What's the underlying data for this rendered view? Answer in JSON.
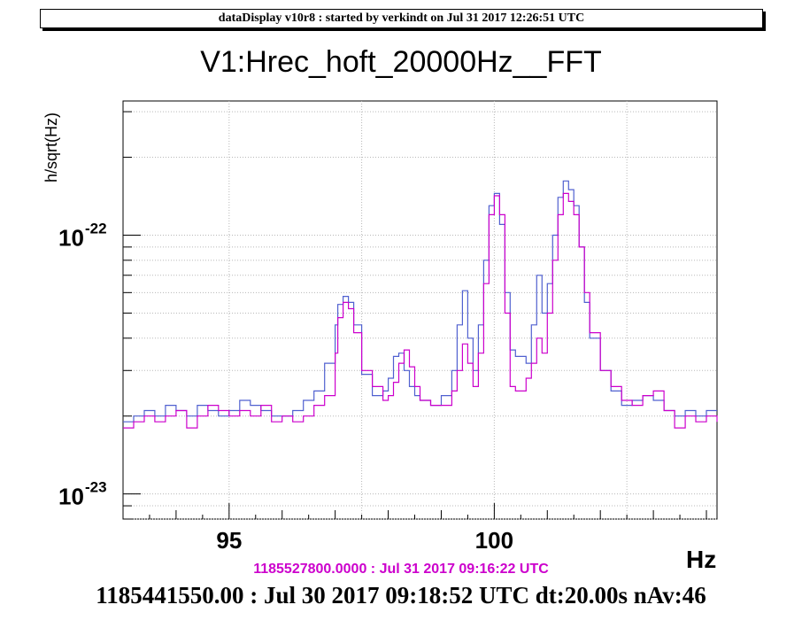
{
  "banner": "dataDisplay v10r8 : started by verkindt on Jul 31 2017 12:26:51 UTC",
  "footer": {
    "reference": "1185527800.0000 : Jul 31 2017 09:16:22 UTC",
    "main": "1185441550.00 : Jul 30 2017 09:18:52 UTC dt:20.00s nAv:46"
  },
  "colors": {
    "reference": "#cc00cc",
    "current": "#5060d0"
  },
  "chart_data": {
    "type": "line",
    "title": "V1:Hrec_hoft_20000Hz__FFT",
    "ylabel": "h/sqrt(Hz)",
    "xlabel": "Hz",
    "xlim": [
      93,
      104.2
    ],
    "ylim": [
      8e-24,
      3.3e-22
    ],
    "yscale": "log",
    "grid": true,
    "x_ticks": [
      95,
      100
    ],
    "y_ticks": [
      {
        "base": "10",
        "exp": "-22",
        "value": 1e-22
      },
      {
        "base": "10",
        "exp": "-23",
        "value": 1e-23
      }
    ],
    "x": [
      93.0,
      93.2,
      93.4,
      93.6,
      93.8,
      94.0,
      94.2,
      94.4,
      94.6,
      94.8,
      95.0,
      95.2,
      95.4,
      95.6,
      95.8,
      96.0,
      96.2,
      96.4,
      96.6,
      96.8,
      97.0,
      97.05,
      97.15,
      97.25,
      97.35,
      97.5,
      97.7,
      97.9,
      98.0,
      98.1,
      98.2,
      98.3,
      98.4,
      98.5,
      98.6,
      98.8,
      99.0,
      99.2,
      99.3,
      99.4,
      99.5,
      99.6,
      99.7,
      99.8,
      99.9,
      100.0,
      100.1,
      100.2,
      100.3,
      100.4,
      100.6,
      100.7,
      100.8,
      100.9,
      101.0,
      101.1,
      101.2,
      101.3,
      101.4,
      101.5,
      101.6,
      101.7,
      101.8,
      102.0,
      102.2,
      102.4,
      102.6,
      102.8,
      103.0,
      103.2,
      103.4,
      103.6,
      103.8,
      104.0,
      104.2
    ],
    "series": [
      {
        "name": "",
        "values": [
          1.9e-23,
          2e-23,
          2.1e-23,
          2e-23,
          2.2e-23,
          2.1e-23,
          2e-23,
          2.2e-23,
          2.1e-23,
          2e-23,
          2.1e-23,
          2.3e-23,
          2.2e-23,
          2.1e-23,
          2e-23,
          2e-23,
          2.1e-23,
          2.3e-23,
          2.5e-23,
          3.2e-23,
          4.5e-23,
          5.4e-23,
          5.8e-23,
          5.5e-23,
          4.5e-23,
          2.9e-23,
          2.4e-23,
          2.5e-23,
          2.8e-23,
          3.4e-23,
          3.5e-23,
          3e-23,
          2.6e-23,
          2.4e-23,
          2.3e-23,
          2.2e-23,
          2.4e-23,
          3e-23,
          4.5e-23,
          6.1e-23,
          4e-23,
          3e-23,
          4.5e-23,
          8e-23,
          1.3e-22,
          1.45e-22,
          1.1e-22,
          6e-23,
          3.6e-23,
          3.4e-23,
          3.2e-23,
          4.5e-23,
          7e-23,
          5e-23,
          6.5e-23,
          1e-22,
          1.4e-22,
          1.62e-22,
          1.5e-22,
          1.3e-22,
          9e-23,
          5.5e-23,
          4e-23,
          3e-23,
          2.5e-23,
          2.2e-23,
          2.3e-23,
          2.4e-23,
          2.3e-23,
          2.1e-23,
          2e-23,
          2.1e-23,
          2e-23,
          2.1e-23,
          2.1e-23
        ]
      },
      {
        "name": "",
        "values": [
          1.8e-23,
          1.9e-23,
          2e-23,
          1.9e-23,
          2e-23,
          2.1e-23,
          1.8e-23,
          2e-23,
          2.2e-23,
          2.1e-23,
          2e-23,
          2.1e-23,
          2e-23,
          2.2e-23,
          1.9e-23,
          2e-23,
          1.9e-23,
          2e-23,
          2.2e-23,
          2.4e-23,
          3.5e-23,
          4.8e-23,
          5.5e-23,
          5.2e-23,
          4.2e-23,
          3e-23,
          2.6e-23,
          2.3e-23,
          2.4e-23,
          2.7e-23,
          3.2e-23,
          3.6e-23,
          3.1e-23,
          2.6e-23,
          2.3e-23,
          2.2e-23,
          2.2e-23,
          2.5e-23,
          3e-23,
          3.8e-23,
          3.2e-23,
          2.6e-23,
          3.5e-23,
          6.5e-23,
          1.2e-22,
          1.42e-22,
          1.2e-22,
          5e-23,
          2.6e-23,
          2.5e-23,
          2.8e-23,
          3.2e-23,
          4e-23,
          3.5e-23,
          5e-23,
          8e-23,
          1.2e-22,
          1.45e-22,
          1.35e-22,
          1.2e-22,
          9e-23,
          6e-23,
          4.2e-23,
          3e-23,
          2.6e-23,
          2.3e-23,
          2.2e-23,
          2.4e-23,
          2.5e-23,
          2.1e-23,
          1.8e-23,
          2e-23,
          1.9e-23,
          2e-23,
          1.9e-23
        ]
      }
    ]
  }
}
